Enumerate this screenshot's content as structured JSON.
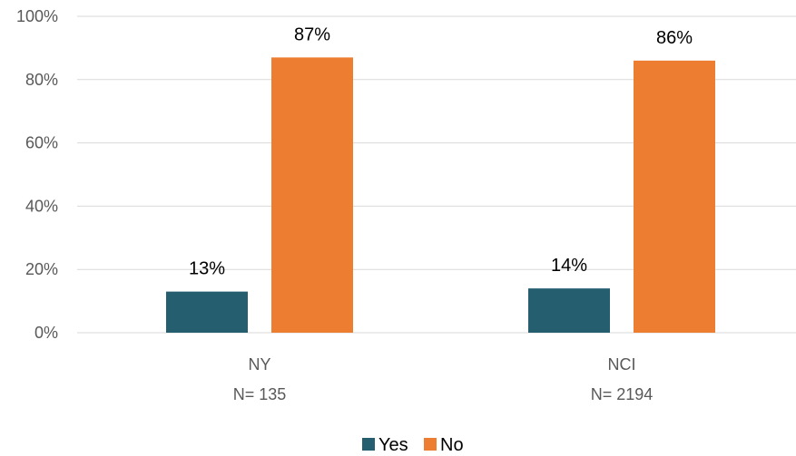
{
  "chart_data": {
    "type": "bar",
    "categories": [
      "NY",
      "NCI"
    ],
    "category_sublabels": [
      "N= 135",
      "N= 2194"
    ],
    "series": [
      {
        "name": "Yes",
        "color": "#245e6f",
        "values": [
          13,
          14
        ],
        "labels": [
          "13%",
          "14%"
        ]
      },
      {
        "name": "No",
        "color": "#ed7d31",
        "values": [
          87,
          86
        ],
        "labels": [
          "87%",
          "86%"
        ]
      }
    ],
    "ylim": [
      0,
      100
    ],
    "yticks": [
      0,
      20,
      40,
      60,
      80,
      100
    ],
    "ytick_labels": [
      "0%",
      "20%",
      "40%",
      "60%",
      "80%",
      "100%"
    ],
    "grid": true,
    "legend_position": "bottom"
  }
}
